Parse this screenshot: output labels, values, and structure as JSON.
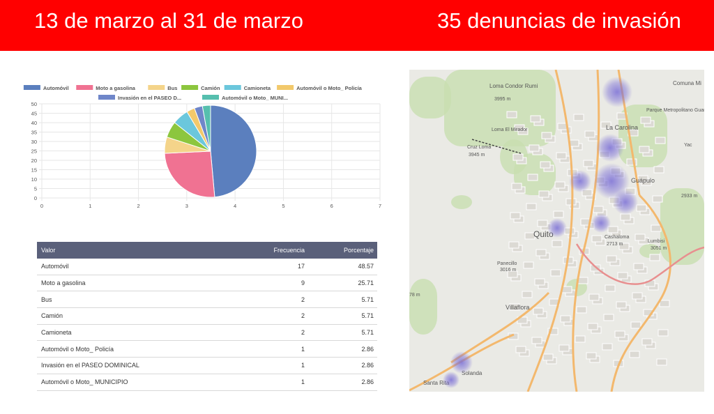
{
  "header": {
    "date_range": "13 de marzo al 31 de marzo",
    "count_title": "35 denuncias de invasión",
    "bg_color": "#ff0000"
  },
  "chart_data": {
    "type": "pie",
    "legend": [
      "Automóvil",
      "Moto a gasolina",
      "Bus",
      "Camión",
      "Camioneta",
      "Automóvil o Moto_ Policía",
      "Invasión en el PASEO D...",
      "Automóvil o Moto_ MUNI..."
    ],
    "categories": [
      "Automóvil",
      "Moto a gasolina",
      "Bus",
      "Camión",
      "Camioneta",
      "Automóvil o Moto_ Policía",
      "Invasión en el PASEO DOMINICAL",
      "Automóvil o Moto_ MUNICIPIO"
    ],
    "values": [
      17,
      9,
      2,
      2,
      2,
      1,
      1,
      1
    ],
    "colors": [
      "#5b7fbe",
      "#f07292",
      "#f4d48a",
      "#8cc63e",
      "#6bc7dc",
      "#f2c96b",
      "#6f86c9",
      "#56bfae"
    ],
    "y_ticks": [
      "50",
      "45",
      "40",
      "35",
      "30",
      "25",
      "20",
      "15",
      "10",
      "5",
      "0"
    ],
    "x_ticks": [
      "0",
      "1",
      "2",
      "3",
      "4",
      "5",
      "6",
      "7"
    ],
    "ylim": [
      0,
      50
    ],
    "xlim": [
      0,
      7
    ],
    "grid": true,
    "legend_position": "top"
  },
  "table": {
    "headers": [
      "Valor",
      "Frecuencia",
      "Porcentaje"
    ],
    "rows": [
      [
        "Automóvil",
        "17",
        "48.57"
      ],
      [
        "Moto a gasolina",
        "9",
        "25.71"
      ],
      [
        "Bus",
        "2",
        "5.71"
      ],
      [
        "Camión",
        "2",
        "5.71"
      ],
      [
        "Camioneta",
        "2",
        "5.71"
      ],
      [
        "Automóvil o Moto_ Policía",
        "1",
        "2.86"
      ],
      [
        "Invasión en el PASEO DOMINICAL",
        "1",
        "2.86"
      ],
      [
        "Automóvil o Moto_ MUNICIPIO",
        "1",
        "2.86"
      ]
    ]
  },
  "map": {
    "labels": [
      "Loma Condor Rumi",
      "3995 m",
      "Loma El Mirador",
      "Cruz Loma",
      "3945 m",
      "La Carolina",
      "Guápulo",
      "Quito",
      "Cashaloma",
      "2713 m",
      "Lumbisi",
      "3051 m",
      "Panecillo",
      "3016 m",
      "Villaflora",
      "Solanda",
      "Santa Rita",
      "Parque Metropolitano Guanguiltagua",
      "Comuna Mi",
      "Yac",
      "78 m",
      "2933 m"
    ],
    "heat_color": "#7b6fd6"
  }
}
